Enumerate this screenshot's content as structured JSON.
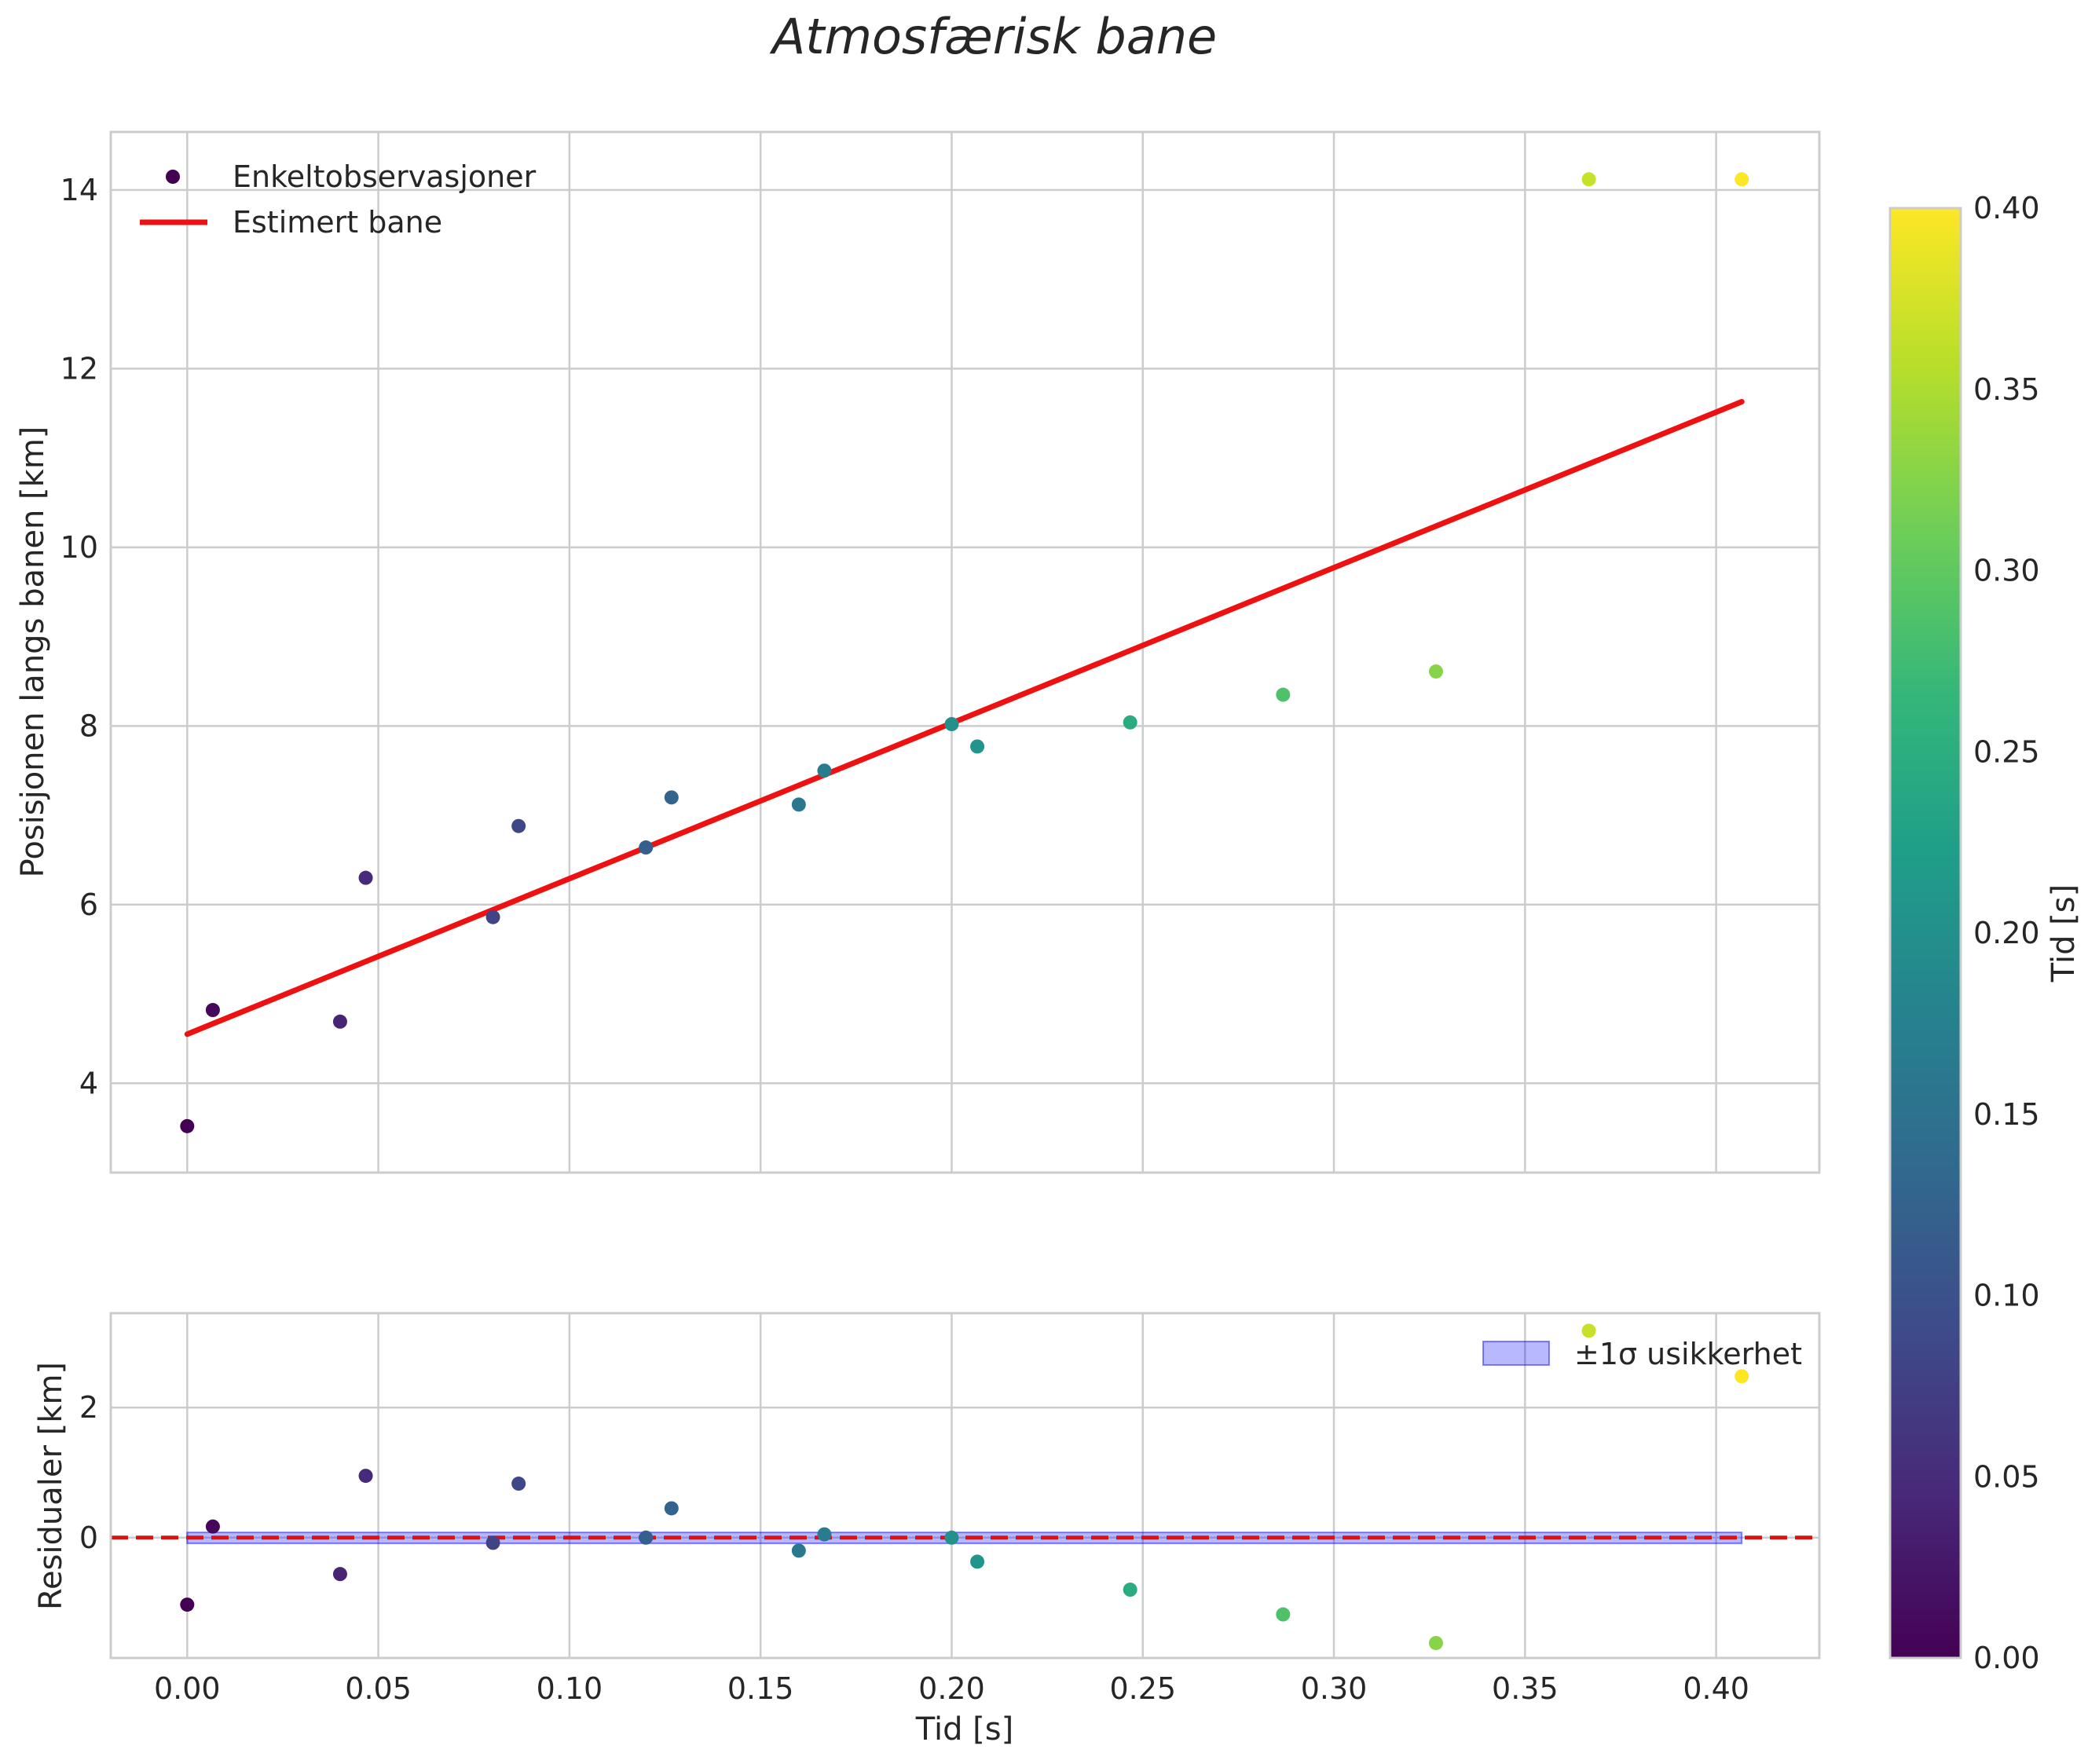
{
  "chart_data": [
    {
      "type": "scatter",
      "panel": "main",
      "title": "Atmosfærisk bane",
      "xlabel": "",
      "ylabel": "Posisjonen langs banen [km]",
      "xlim": [
        -0.02,
        0.427
      ],
      "ylim": [
        3.0,
        14.65
      ],
      "xticks": [
        "0.00",
        "0.05",
        "0.10",
        "0.15",
        "0.20",
        "0.25",
        "0.30",
        "0.35",
        "0.40"
      ],
      "yticks": [
        "4",
        "6",
        "8",
        "10",
        "12",
        "14"
      ],
      "grid": true,
      "legend": {
        "position": "top-left",
        "entries": [
          "Enkeltobservasjoner",
          "Estimert bane"
        ]
      },
      "series": [
        {
          "name": "Enkeltobservasjoner",
          "kind": "scatter",
          "x": [
            0.0,
            0.0067,
            0.04,
            0.0467,
            0.08,
            0.0867,
            0.12,
            0.1267,
            0.16,
            0.1667,
            0.2,
            0.2067,
            0.2467,
            0.2867,
            0.3267,
            0.3667,
            0.4067
          ],
          "y": [
            3.52,
            4.82,
            4.69,
            6.3,
            5.86,
            6.88,
            6.64,
            7.2,
            7.12,
            7.5,
            8.02,
            7.77,
            8.04,
            8.35,
            8.61,
            14.12,
            14.12
          ]
        },
        {
          "name": "Estimert bane",
          "kind": "line",
          "color": "#ee1111",
          "x": [
            0.0,
            0.4067
          ],
          "y": [
            4.55,
            11.63
          ]
        }
      ]
    },
    {
      "type": "scatter",
      "panel": "residuals",
      "xlabel": "Tid [s]",
      "ylabel": "Residualer [km]",
      "xlim": [
        -0.02,
        0.427
      ],
      "ylim": [
        -1.85,
        3.45
      ],
      "xticks": [
        "0.00",
        "0.05",
        "0.10",
        "0.15",
        "0.20",
        "0.25",
        "0.30",
        "0.35",
        "0.40"
      ],
      "yticks": [
        "0",
        "2"
      ],
      "grid": true,
      "legend": {
        "position": "top-right",
        "entries": [
          "±1σ usikkerhet"
        ]
      },
      "series": [
        {
          "name": "Residualer",
          "kind": "scatter",
          "x": [
            0.0,
            0.0067,
            0.04,
            0.0467,
            0.08,
            0.0867,
            0.12,
            0.1267,
            0.16,
            0.1667,
            0.2,
            0.2067,
            0.2467,
            0.2867,
            0.3267,
            0.3667,
            0.4067
          ],
          "y": [
            -1.03,
            0.17,
            -0.56,
            0.95,
            -0.08,
            0.83,
            0.0,
            0.45,
            -0.2,
            0.05,
            0.0,
            -0.37,
            -0.8,
            -1.18,
            -1.62,
            3.18,
            2.48
          ]
        },
        {
          "name": "±1σ usikkerhet",
          "kind": "band",
          "color": "#0000ff",
          "x": [
            0.0,
            0.4067
          ],
          "lower": -0.08,
          "upper": 0.08
        },
        {
          "name": "zero-line",
          "kind": "hline",
          "color": "#dd1111",
          "y": 0
        }
      ]
    }
  ],
  "colorbar": {
    "label": "Tid [s]",
    "colormap": "viridis",
    "range": [
      0.0,
      0.4
    ],
    "ticks": [
      "0.00",
      "0.05",
      "0.10",
      "0.15",
      "0.20",
      "0.25",
      "0.30",
      "0.35",
      "0.40"
    ],
    "colors": [
      "#440154",
      "#482878",
      "#3e4a89",
      "#31688e",
      "#26828e",
      "#1f9e89",
      "#35b779",
      "#6ece58",
      "#b5de2b",
      "#fde725"
    ]
  }
}
